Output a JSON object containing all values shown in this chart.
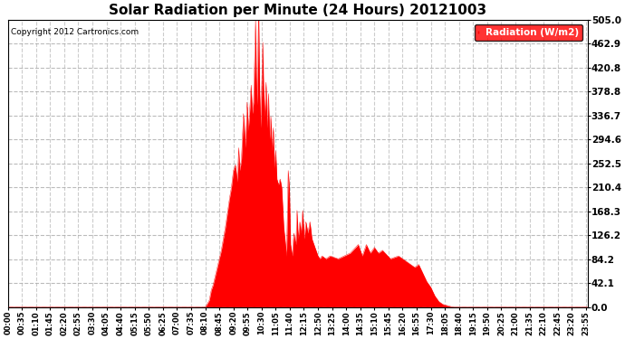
{
  "title": "Solar Radiation per Minute (24 Hours) 20121003",
  "copyright_text": "Copyright 2012 Cartronics.com",
  "legend_label": "Radiation (W/m2)",
  "ylim": [
    0.0,
    505.0
  ],
  "yticks": [
    0.0,
    42.1,
    84.2,
    126.2,
    168.3,
    210.4,
    252.5,
    294.6,
    336.7,
    378.8,
    420.8,
    462.9,
    505.0
  ],
  "fill_color": "#ff0000",
  "line_color": "#ff0000",
  "dashed_line_color": "#ff4444",
  "background_color": "#ffffff",
  "grid_color": "#aaaaaa",
  "legend_bg": "#ff0000",
  "legend_text_color": "#ffffff",
  "total_minutes": 1440,
  "tick_interval": 35
}
